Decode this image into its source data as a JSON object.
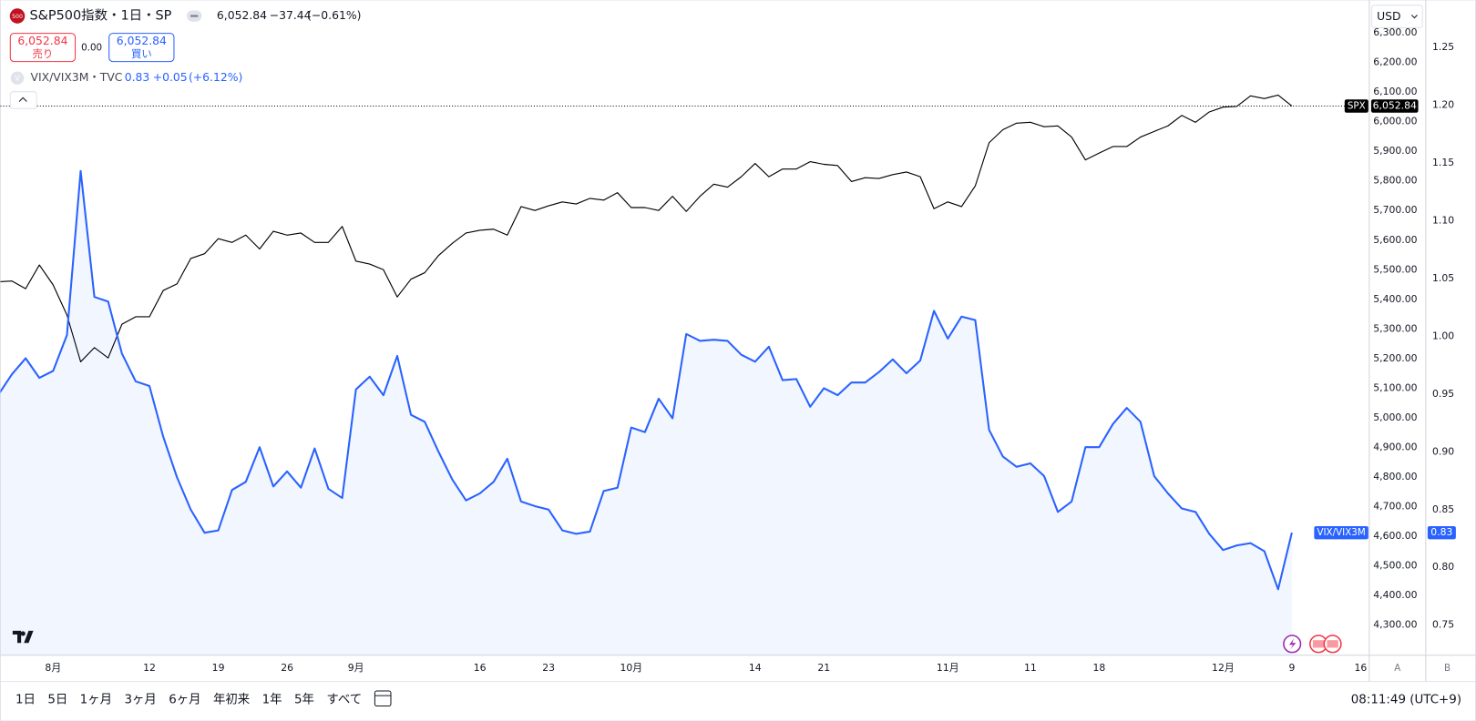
{
  "header": {
    "icon": "500",
    "symbol": "S&P500指数・1日・SP",
    "last": "6,052.84",
    "change": "−37.44",
    "change_pct": "(−0.61%)",
    "sell_price": "6,052.84",
    "sell_label": "売り",
    "spread": "0.00",
    "buy_price": "6,052.84",
    "buy_label": "買い",
    "compare_icon": "V",
    "compare_symbol": "VIX/VIX3M・TVC",
    "compare_last": "0.83",
    "compare_change": "+0.05",
    "compare_change_pct": "(+6.12%)"
  },
  "currency": "USD",
  "chart_data": {
    "type": "line",
    "categories": [
      null,
      null,
      null,
      null,
      "8月",
      null,
      null,
      null,
      null,
      null,
      null,
      "12",
      null,
      null,
      null,
      null,
      "19",
      null,
      null,
      null,
      null,
      "26",
      null,
      null,
      null,
      null,
      "9月",
      null,
      null,
      null,
      null,
      null,
      null,
      null,
      null,
      "16",
      null,
      null,
      null,
      null,
      "23",
      null,
      null,
      null,
      null,
      null,
      "10月",
      null,
      null,
      null,
      null,
      null,
      null,
      null,
      null,
      "14",
      null,
      null,
      null,
      null,
      "21",
      null,
      null,
      null,
      null,
      null,
      null,
      null,
      null,
      "11月",
      null,
      null,
      null,
      null,
      null,
      "11",
      null,
      null,
      null,
      null,
      "18",
      null,
      null,
      null,
      null,
      null,
      null,
      null,
      null,
      "12月",
      null,
      null,
      null,
      null,
      "9",
      null,
      null,
      null,
      null,
      "16"
    ],
    "series": [
      {
        "name": "SPX",
        "color": "#000000",
        "last_value_label": "6,052.84",
        "price_line": "dotted",
        "values": [
          5459,
          5462,
          5436,
          5516,
          5449,
          5347,
          5189,
          5237,
          5202,
          5316,
          5341,
          5341,
          5430,
          5452,
          5538,
          5554,
          5605,
          5592,
          5617,
          5570,
          5630,
          5617,
          5624,
          5592,
          5592,
          5646,
          5529,
          5519,
          5500,
          5408,
          5468,
          5490,
          5548,
          5589,
          5624,
          5633,
          5637,
          5617,
          5713,
          5700,
          5716,
          5729,
          5722,
          5741,
          5735,
          5760,
          5710,
          5710,
          5700,
          5748,
          5697,
          5748,
          5789,
          5779,
          5814,
          5859,
          5814,
          5840,
          5840,
          5865,
          5856,
          5852,
          5798,
          5811,
          5808,
          5821,
          5830,
          5814,
          5706,
          5729,
          5713,
          5783,
          5929,
          5973,
          5995,
          5998,
          5983,
          5986,
          5948,
          5871,
          5894,
          5916,
          5916,
          5948,
          5967,
          5986,
          6021,
          5998,
          6033,
          6049,
          6052,
          6087,
          6078,
          6090,
          6052.84,
          null,
          null,
          null,
          null,
          null
        ]
      },
      {
        "name": "VIX/VIX3M",
        "color": "#2962ff",
        "axis": "y2",
        "area": true,
        "last_value_label": "0.83",
        "values": [
          0.949,
          0.967,
          0.981,
          0.964,
          0.97,
          1.001,
          1.143,
          1.034,
          1.03,
          0.985,
          0.961,
          0.957,
          0.913,
          0.878,
          0.85,
          0.83,
          0.832,
          0.867,
          0.874,
          0.904,
          0.87,
          0.883,
          0.869,
          0.903,
          0.868,
          0.86,
          0.954,
          0.965,
          0.949,
          0.983,
          0.932,
          0.926,
          0.9,
          0.876,
          0.858,
          0.864,
          0.874,
          0.894,
          0.857,
          0.853,
          0.85,
          0.832,
          0.829,
          0.831,
          0.866,
          0.869,
          0.921,
          0.917,
          0.946,
          0.929,
          1.002,
          0.996,
          0.997,
          0.996,
          0.984,
          0.978,
          0.991,
          0.962,
          0.963,
          0.939,
          0.955,
          0.949,
          0.96,
          0.96,
          0.969,
          0.98,
          0.968,
          0.979,
          1.022,
          0.998,
          1.017,
          1.014,
          0.919,
          0.896,
          0.887,
          0.89,
          0.879,
          0.848,
          0.857,
          0.904,
          0.904,
          0.924,
          0.938,
          0.926,
          0.879,
          0.864,
          0.851,
          0.848,
          0.829,
          0.815,
          0.819,
          0.821,
          0.814,
          0.781,
          0.83,
          null,
          null,
          null,
          null,
          null
        ]
      }
    ],
    "ylim": [
      4198,
      6411
    ],
    "yticks": [
      {
        "value": 4300,
        "label": "4,300.00"
      },
      {
        "value": 4400,
        "label": "4,400.00"
      },
      {
        "value": 4500,
        "label": "4,500.00"
      },
      {
        "value": 4600,
        "label": "4,600.00"
      },
      {
        "value": 4700,
        "label": "4,700.00"
      },
      {
        "value": 4800,
        "label": "4,800.00"
      },
      {
        "value": 4900,
        "label": "4,900.00"
      },
      {
        "value": 5000,
        "label": "5,000.00"
      },
      {
        "value": 5100,
        "label": "5,100.00"
      },
      {
        "value": 5200,
        "label": "5,200.00"
      },
      {
        "value": 5300,
        "label": "5,300.00"
      },
      {
        "value": 5400,
        "label": "5,400.00"
      },
      {
        "value": 5500,
        "label": "5,500.00"
      },
      {
        "value": 5600,
        "label": "5,600.00"
      },
      {
        "value": 5700,
        "label": "5,700.00"
      },
      {
        "value": 5800,
        "label": "5,800.00"
      },
      {
        "value": 5900,
        "label": "5,900.00"
      },
      {
        "value": 6000,
        "label": "6,000.00"
      },
      {
        "value": 6100,
        "label": "6,100.00"
      },
      {
        "value": 6200,
        "label": "6,200.00"
      },
      {
        "value": 6300,
        "label": "6,300.00"
      }
    ],
    "y2lim": [
      0.724,
      1.291
    ],
    "y2ticks": [
      0.75,
      {
        "value": 0.8,
        "label": "0.80"
      },
      0.85,
      {
        "value": 0.9,
        "label": "0.90"
      },
      0.95,
      {
        "value": 1.0,
        "label": "1.00"
      },
      1.05,
      {
        "value": 1.1,
        "label": "1.10"
      },
      1.15,
      {
        "value": 1.2,
        "label": "1.20"
      },
      1.25
    ],
    "grid": false
  },
  "scale_buttons": [
    "A",
    "B"
  ],
  "toolbar": {
    "ranges": [
      "1日",
      "5日",
      "1ヶ月",
      "3ヶ月",
      "6ヶ月",
      "年初来",
      "1年",
      "5年",
      "すべて"
    ],
    "time": "08:11:49 (UTC+9)"
  }
}
